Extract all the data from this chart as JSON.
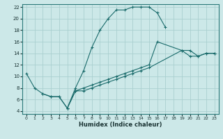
{
  "title": "",
  "xlabel": "Humidex (Indice chaleur)",
  "bg_color": "#cce8e8",
  "grid_color": "#aacfcf",
  "line_color": "#1a6b6b",
  "xlim": [
    -0.5,
    23.5
  ],
  "ylim": [
    3.5,
    22.5
  ],
  "xticks": [
    0,
    1,
    2,
    3,
    4,
    5,
    6,
    7,
    8,
    9,
    10,
    11,
    12,
    13,
    14,
    15,
    16,
    17,
    18,
    19,
    20,
    21,
    22,
    23
  ],
  "yticks": [
    4,
    6,
    8,
    10,
    12,
    14,
    16,
    18,
    20,
    22
  ],
  "curve1_x": [
    0,
    1,
    2,
    3,
    4,
    5,
    6,
    7,
    8,
    9,
    10,
    11,
    12,
    13,
    14,
    15,
    16,
    17
  ],
  "curve1_y": [
    10.5,
    8.0,
    7.0,
    6.5,
    6.5,
    4.5,
    8.0,
    11.0,
    15.0,
    18.0,
    20.0,
    21.5,
    21.5,
    22.0,
    22.0,
    22.0,
    21.0,
    18.5
  ],
  "curve2_x": [
    2,
    3,
    4,
    5,
    6,
    7,
    8,
    9,
    10,
    11,
    12,
    13,
    14,
    15,
    16,
    19,
    20,
    21,
    22,
    23
  ],
  "curve2_y": [
    7.0,
    6.5,
    6.5,
    4.5,
    7.5,
    8.0,
    8.5,
    9.0,
    9.5,
    10.0,
    10.5,
    11.0,
    11.5,
    12.0,
    16.0,
    14.5,
    14.5,
    13.5,
    14.0,
    14.0
  ],
  "curve3_x": [
    5,
    6,
    7,
    8,
    9,
    10,
    11,
    12,
    13,
    14,
    15,
    19,
    20,
    21,
    22,
    23
  ],
  "curve3_y": [
    4.5,
    7.5,
    7.5,
    8.0,
    8.5,
    9.0,
    9.5,
    10.0,
    10.5,
    11.0,
    11.5,
    14.5,
    13.5,
    13.5,
    14.0,
    14.0
  ]
}
